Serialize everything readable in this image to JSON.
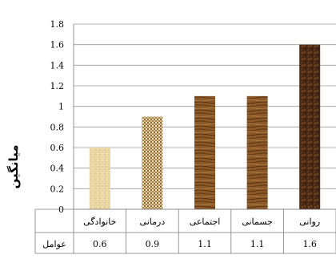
{
  "chart_data": {
    "type": "bar",
    "ylabel": "میانگین",
    "categories": [
      "خانوادگی",
      "درمانی",
      "اجتماعی",
      "جسمانی",
      "روانی"
    ],
    "values": [
      0.6,
      0.9,
      1.1,
      1.1,
      1.6
    ],
    "value_labels": [
      "0.6",
      "0.9",
      "1.1",
      "1.1",
      "1.6"
    ],
    "table_row_label": "عوامل",
    "ylim": [
      0,
      1.8
    ],
    "yticks": [
      "0",
      "0.2",
      "0.4",
      "0.6",
      "0.8",
      "1",
      "1.2",
      "1.4",
      "1.6",
      "1.8"
    ],
    "grid": true,
    "bar_fills": [
      "straw",
      "woven-mesh",
      "wood-grain",
      "wood-grain",
      "dark-wood"
    ]
  }
}
